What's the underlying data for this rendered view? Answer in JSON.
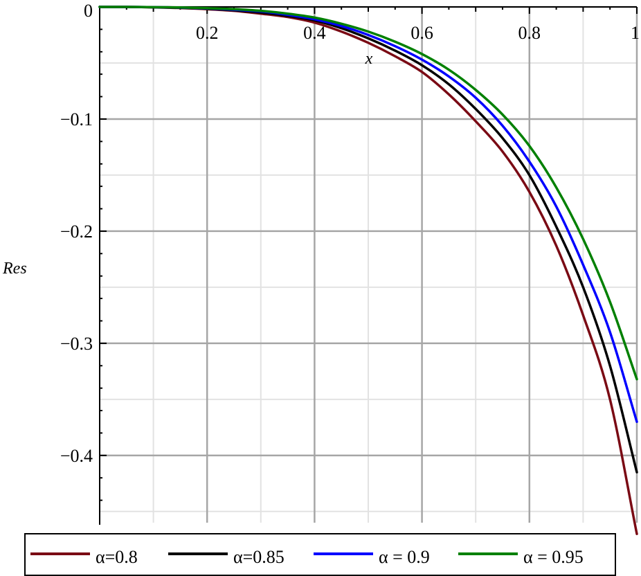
{
  "chart_data": {
    "type": "line",
    "xlabel": "x",
    "ylabel": "Res",
    "xlim": [
      0,
      1
    ],
    "ylim": [
      -0.46,
      0
    ],
    "x_ticks": [
      0.2,
      0.4,
      0.6,
      0.8,
      1
    ],
    "x_tick_labels": [
      "0.2",
      "0.4",
      "0.6",
      "0.8",
      "1"
    ],
    "y_ticks": [
      0,
      -0.1,
      -0.2,
      -0.3,
      -0.4
    ],
    "y_tick_labels": [
      "0",
      "−0.1",
      "−0.2",
      "−0.3",
      "−0.4"
    ],
    "grid": true,
    "legend_position": "bottom",
    "x": [
      0.05,
      0.1,
      0.15,
      0.2,
      0.25,
      0.3,
      0.35,
      0.4,
      0.45,
      0.5,
      0.55,
      0.6,
      0.65,
      0.7,
      0.75,
      0.8,
      0.85,
      0.9,
      0.95,
      1.0
    ],
    "series": [
      {
        "name": "α=0.8",
        "color": "#7a0a14",
        "values": [
          0,
          -0.0004,
          -0.001,
          -0.002,
          -0.0035,
          -0.006,
          -0.009,
          -0.014,
          -0.022,
          -0.032,
          -0.044,
          -0.058,
          -0.078,
          -0.102,
          -0.129,
          -0.165,
          -0.213,
          -0.275,
          -0.35,
          -0.47
        ]
      },
      {
        "name": "α=0.85",
        "color": "#000000",
        "values": [
          0,
          -0.0003,
          -0.0008,
          -0.0016,
          -0.003,
          -0.005,
          -0.008,
          -0.012,
          -0.019,
          -0.028,
          -0.039,
          -0.052,
          -0.069,
          -0.091,
          -0.117,
          -0.15,
          -0.196,
          -0.25,
          -0.32,
          -0.415
        ]
      },
      {
        "name": "α = 0.9",
        "color": "#0000ff",
        "values": [
          0,
          -0.0002,
          -0.0006,
          -0.0013,
          -0.0025,
          -0.004,
          -0.007,
          -0.011,
          -0.017,
          -0.025,
          -0.035,
          -0.047,
          -0.062,
          -0.081,
          -0.106,
          -0.138,
          -0.178,
          -0.23,
          -0.29,
          -0.37
        ]
      },
      {
        "name": "α = 0.95",
        "color": "#008000",
        "values": [
          0,
          -0.0002,
          -0.0005,
          -0.0011,
          -0.002,
          -0.0035,
          -0.006,
          -0.0095,
          -0.015,
          -0.022,
          -0.031,
          -0.042,
          -0.056,
          -0.074,
          -0.096,
          -0.124,
          -0.161,
          -0.207,
          -0.263,
          -0.332
        ]
      }
    ]
  }
}
